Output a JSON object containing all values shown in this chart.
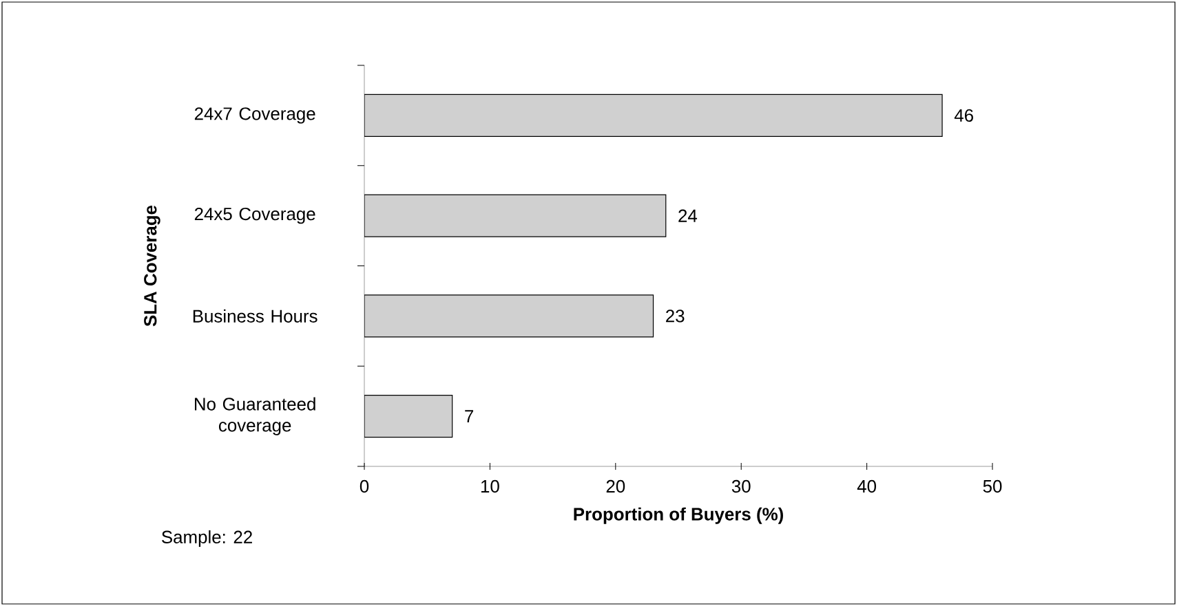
{
  "chart_data": {
    "type": "bar",
    "orientation": "horizontal",
    "categories": [
      "24x7 Coverage",
      "24x5 Coverage",
      "Business Hours",
      "No Guaranteed coverage"
    ],
    "values": [
      46,
      24,
      23,
      7
    ],
    "color": "#d0d0d0",
    "xlim": [
      0,
      50
    ],
    "xticks": [
      0,
      10,
      20,
      30,
      40,
      50
    ],
    "xlabel": "Proportion of Buyers (%)",
    "ylabel": "SLA Coverage",
    "data_labels": true,
    "grid": false,
    "legend": false,
    "annotations": [
      "Sample: 22"
    ]
  }
}
